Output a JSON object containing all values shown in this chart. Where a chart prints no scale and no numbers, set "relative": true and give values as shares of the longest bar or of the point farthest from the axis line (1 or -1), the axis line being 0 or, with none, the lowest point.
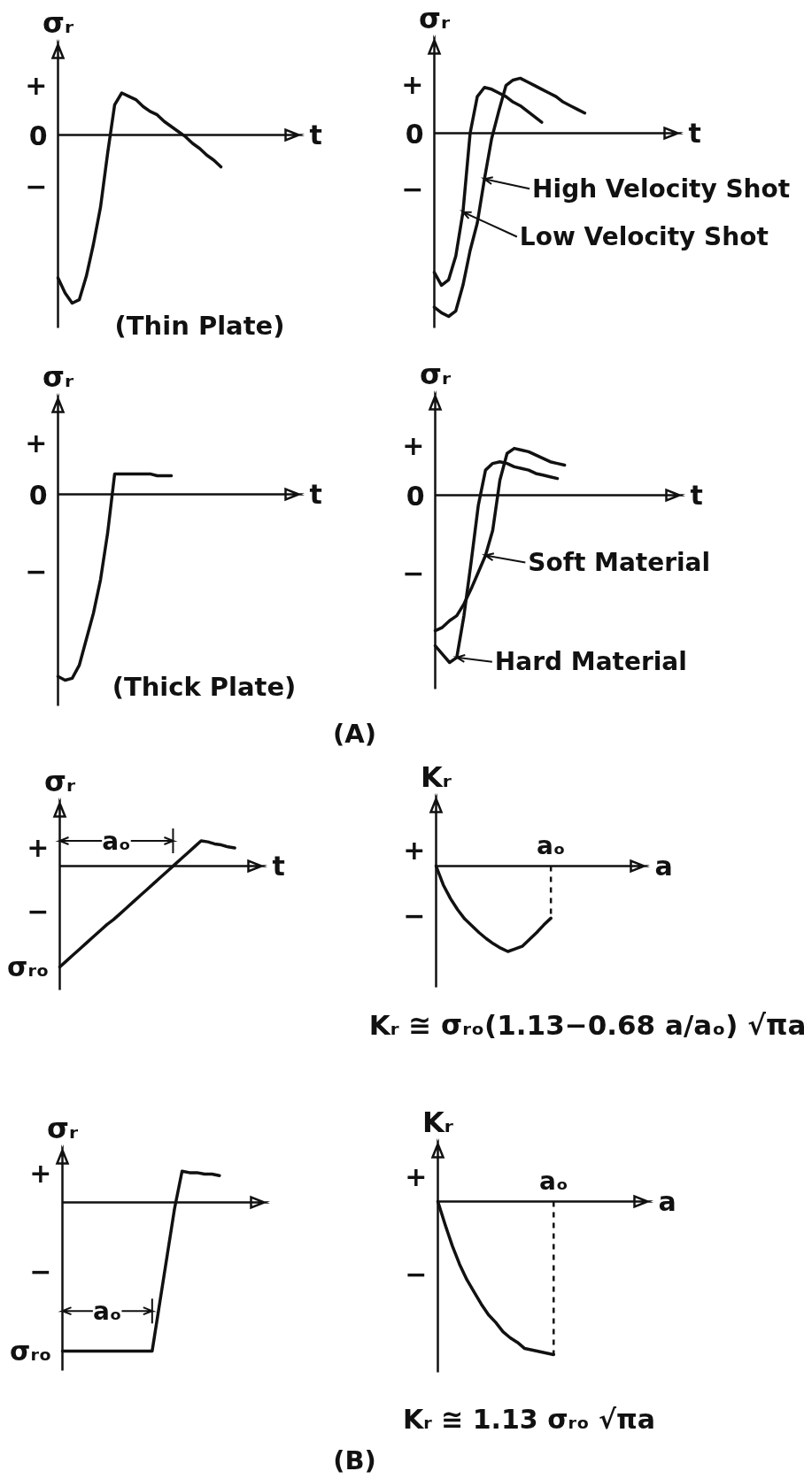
{
  "chart_data": [
    {
      "type": "line",
      "relative": true,
      "ylabel": "σᵣ",
      "xlabel": "t",
      "categories": [
        null,
        null,
        null,
        null,
        null,
        null,
        null,
        null,
        null,
        null,
        null,
        null,
        null,
        null,
        null,
        null,
        null,
        null,
        null,
        null,
        null,
        null,
        null,
        null,
        null,
        null,
        null,
        null,
        null,
        null,
        null,
        null,
        null,
        null,
        null
      ],
      "series": [
        {
          "color": "#111111",
          "values": [
            -0.85,
            -0.94,
            -1.0,
            -0.98,
            -0.84,
            -0.65,
            -0.43,
            -0.11,
            0.18,
            0.25,
            0.23,
            0.21,
            0.17,
            0.14,
            0.12,
            0.08,
            0.05,
            0.02,
            -0.01,
            -0.05,
            -0.08,
            -0.12,
            -0.15,
            -0.19,
            null,
            null,
            null,
            null,
            null,
            null,
            null,
            null,
            null,
            null,
            null
          ]
        }
      ],
      "annotations": [
        "+",
        "0",
        "−",
        "(Thin Plate)"
      ]
    },
    {
      "type": "line",
      "relative": true,
      "ylabel": "σᵣ",
      "xlabel": "t",
      "legend": "right",
      "categories": [
        null,
        null,
        null,
        null,
        null,
        null,
        null,
        null,
        null,
        null,
        null,
        null,
        null,
        null,
        null,
        null,
        null,
        null,
        null,
        null,
        null,
        null,
        null,
        null,
        null,
        null,
        null,
        null,
        null,
        null,
        null,
        null,
        null,
        null,
        null
      ],
      "series": [
        {
          "name": "High Velocity Shot",
          "color": "#111111",
          "values": [
            -0.95,
            -0.98,
            -1.0,
            -0.97,
            -0.83,
            -0.64,
            -0.49,
            -0.25,
            -0.03,
            0.12,
            0.26,
            0.29,
            0.3,
            0.28,
            0.26,
            0.24,
            0.22,
            0.2,
            0.17,
            0.15,
            0.13,
            0.11,
            null,
            null,
            null,
            null,
            null,
            null,
            null,
            null,
            null,
            null,
            null,
            null,
            null
          ]
        },
        {
          "name": "Low Velocity Shot",
          "color": "#111111",
          "values": [
            -0.76,
            -0.83,
            -0.8,
            -0.67,
            -0.43,
            0.0,
            0.2,
            0.25,
            0.24,
            0.22,
            0.2,
            0.17,
            0.15,
            0.12,
            0.09,
            0.06,
            null,
            null,
            null,
            null,
            null,
            null,
            null,
            null,
            null,
            null,
            null,
            null,
            null,
            null,
            null,
            null,
            null,
            null,
            null
          ]
        }
      ],
      "annotations": [
        "+",
        "0",
        "−"
      ]
    },
    {
      "type": "line",
      "relative": true,
      "ylabel": "σᵣ",
      "xlabel": "t",
      "categories": [
        null,
        null,
        null,
        null,
        null,
        null,
        null,
        null,
        null,
        null,
        null,
        null,
        null,
        null,
        null,
        null,
        null,
        null,
        null,
        null,
        null,
        null,
        null,
        null,
        null,
        null,
        null,
        null,
        null,
        null,
        null,
        null,
        null,
        null,
        null
      ],
      "series": [
        {
          "color": "#111111",
          "values": [
            -0.98,
            -1.0,
            -0.99,
            -0.92,
            -0.78,
            -0.64,
            -0.46,
            -0.21,
            0.11,
            0.11,
            0.11,
            0.11,
            0.11,
            0.11,
            0.1,
            0.1,
            0.1,
            null,
            null,
            null,
            null,
            null,
            null,
            null,
            null,
            null,
            null,
            null,
            null,
            null,
            null,
            null,
            null,
            null,
            null
          ]
        }
      ],
      "annotations": [
        "+",
        "0",
        "−",
        "(Thick Plate)",
        "(A)"
      ]
    },
    {
      "type": "line",
      "relative": true,
      "ylabel": "σᵣ",
      "xlabel": "t",
      "legend": "bottom right",
      "categories": [
        null,
        null,
        null,
        null,
        null,
        null,
        null,
        null,
        null,
        null,
        null,
        null,
        null,
        null,
        null,
        null,
        null,
        null,
        null,
        null,
        null,
        null,
        null,
        null,
        null,
        null,
        null,
        null,
        null,
        null,
        null,
        null,
        null,
        null,
        null
      ],
      "series": [
        {
          "name": "Soft Material",
          "color": "#111111",
          "values": [
            -0.81,
            -0.79,
            -0.75,
            -0.72,
            -0.65,
            -0.56,
            -0.46,
            -0.36,
            -0.21,
            0.09,
            0.25,
            0.28,
            0.27,
            0.26,
            0.24,
            0.22,
            0.2,
            0.19,
            0.18,
            null,
            null,
            null,
            null,
            null,
            null,
            null,
            null,
            null,
            null,
            null,
            null,
            null,
            null,
            null,
            null
          ]
        },
        {
          "name": "Hard Material",
          "color": "#111111",
          "values": [
            -0.9,
            -0.95,
            -1.0,
            -0.97,
            -0.72,
            -0.4,
            -0.06,
            0.15,
            0.19,
            0.2,
            0.19,
            0.17,
            0.16,
            0.15,
            0.13,
            0.12,
            0.11,
            0.1,
            null,
            null,
            null,
            null,
            null,
            null,
            null,
            null,
            null,
            null,
            null,
            null,
            null,
            null,
            null,
            null,
            null
          ]
        }
      ],
      "annotations": [
        "+",
        "0",
        "−"
      ]
    },
    {
      "type": "line",
      "relative": true,
      "ylabel": "σᵣ",
      "xlabel": "t",
      "categories": [
        null,
        null,
        null,
        null,
        null,
        null,
        null,
        null,
        null,
        null,
        null,
        null,
        null,
        null,
        null,
        null,
        null,
        null,
        null,
        null,
        null,
        null,
        null,
        null,
        null,
        null,
        null,
        null,
        null,
        null,
        null
      ],
      "series": [
        {
          "color": "#111111",
          "values": [
            -1.0,
            -0.94,
            -0.88,
            -0.82,
            -0.76,
            -0.7,
            -0.64,
            -0.58,
            -0.53,
            -0.47,
            -0.41,
            -0.35,
            -0.29,
            -0.23,
            -0.17,
            -0.11,
            -0.05,
            0.01,
            0.07,
            0.13,
            0.19,
            0.25,
            0.24,
            0.22,
            0.21,
            0.19,
            0.18,
            null,
            null,
            null,
            null
          ]
        }
      ],
      "ref_lines": [
        {
          "axis": "y",
          "value": 0.25,
          "label": "aₒ"
        }
      ],
      "annotations": [
        "+",
        "−",
        "σᵣₒ"
      ]
    },
    {
      "type": "line",
      "relative": true,
      "ylabel": "Kᵣ",
      "xlabel": "a",
      "categories": [
        null,
        null,
        null,
        null,
        null,
        null,
        null,
        null,
        null,
        null,
        null,
        null,
        null,
        null,
        null,
        null,
        null,
        null,
        null,
        null,
        null,
        null,
        null,
        null,
        null,
        null,
        null,
        null,
        null,
        null
      ],
      "series": [
        {
          "color": "#111111",
          "values": [
            0.0,
            -0.22,
            -0.38,
            -0.51,
            -0.62,
            -0.7,
            -0.78,
            -0.85,
            -0.91,
            -0.96,
            -1.0,
            -0.97,
            -0.94,
            -0.86,
            -0.78,
            -0.69,
            -0.61,
            null,
            null,
            null,
            null,
            null,
            null,
            null,
            null,
            null,
            null,
            null,
            null,
            null
          ]
        }
      ],
      "annotations": [
        "+",
        "−",
        "aₒ",
        "Kᵣ ≅ σᵣₒ(1.13−0.68 a/aₒ) √πa"
      ]
    },
    {
      "type": "line",
      "relative": true,
      "ylabel": "σᵣ",
      "categories": [
        null,
        null,
        null,
        null,
        null,
        null,
        null,
        null,
        null,
        null,
        null,
        null,
        null,
        null,
        null,
        null,
        null,
        null,
        null,
        null,
        null,
        null,
        null,
        null,
        null,
        null,
        null,
        null
      ],
      "series": [
        {
          "color": "#111111",
          "values": [
            -1.0,
            -1.0,
            -1.0,
            -1.0,
            -1.0,
            -1.0,
            -1.0,
            -1.0,
            -1.0,
            -1.0,
            -1.0,
            -1.0,
            -1.0,
            -0.68,
            -0.36,
            -0.04,
            0.21,
            0.2,
            0.2,
            0.19,
            0.19,
            0.18,
            null,
            null,
            null,
            null,
            null,
            null
          ]
        }
      ],
      "ref_lines": [
        {
          "axis": "y",
          "value": -0.73,
          "label": "aₒ"
        }
      ],
      "annotations": [
        "+",
        "−",
        "σᵣₒ",
        "(B)"
      ]
    },
    {
      "type": "line",
      "relative": true,
      "ylabel": "Kᵣ",
      "xlabel": "a",
      "categories": [
        null,
        null,
        null,
        null,
        null,
        null,
        null,
        null,
        null,
        null,
        null,
        null,
        null,
        null,
        null,
        null,
        null,
        null,
        null,
        null,
        null,
        null,
        null,
        null,
        null,
        null,
        null,
        null,
        null,
        null
      ],
      "series": [
        {
          "color": "#111111",
          "values": [
            0.0,
            -0.15,
            -0.29,
            -0.41,
            -0.51,
            -0.59,
            -0.67,
            -0.74,
            -0.79,
            -0.85,
            -0.89,
            -0.92,
            -0.96,
            -0.97,
            -0.98,
            -0.99,
            -1.0,
            null,
            null,
            null,
            null,
            null,
            null,
            null,
            null,
            null,
            null,
            null,
            null,
            null
          ]
        }
      ],
      "annotations": [
        "+",
        "−",
        "aₒ",
        "Kᵣ ≅ 1.13 σᵣₒ √πa"
      ]
    }
  ]
}
